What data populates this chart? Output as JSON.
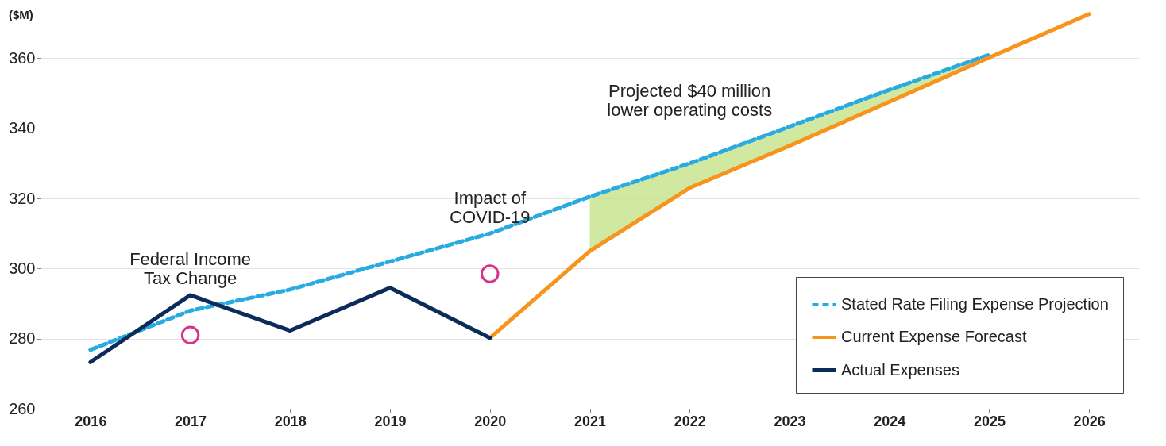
{
  "chart_data": {
    "type": "line",
    "ylabel": "($M)",
    "x": [
      2016,
      2017,
      2018,
      2019,
      2020,
      2021,
      2022,
      2023,
      2024,
      2025
    ],
    "xlim": [
      2015.5,
      2026.5
    ],
    "xticks": [
      2016,
      2017,
      2018,
      2019,
      2020,
      2021,
      2022,
      2023,
      2024,
      2025,
      2026
    ],
    "ylim": [
      260,
      373
    ],
    "yticks": [
      260,
      280,
      300,
      320,
      340,
      360
    ],
    "grid": "y",
    "legend": "bottom right",
    "series": [
      {
        "type": "area",
        "color": "#c6e28a",
        "x": [
          2021,
          2022,
          2023,
          2024,
          2025
        ],
        "values": [
          320.5,
          330,
          340.5,
          351,
          361
        ]
      },
      {
        "name": "Stated Rate Filing Expense Projection",
        "color": "#29abe2",
        "line_style": "dashed",
        "values": [
          276.8,
          288,
          294,
          302,
          310,
          320.5,
          330,
          340.5,
          351,
          361
        ]
      },
      {
        "name": "Current Expense Forecast",
        "color": "#f7941d",
        "line_style": "solid",
        "x": [
          2020,
          2021,
          2022,
          2023,
          2024,
          2025,
          2026
        ],
        "values": [
          280.2,
          305,
          323,
          335,
          347.6,
          360.2,
          372.6
        ]
      },
      {
        "name": "Actual Expenses",
        "color": "#0b2c5a",
        "line_style": "solid",
        "x": [
          2016,
          2017,
          2018,
          2019,
          2020
        ],
        "values": [
          273.3,
          292.4,
          282.3,
          294.5,
          280.2
        ]
      },
      {
        "type": "scatter",
        "color": "#d6338a",
        "marker": "circle",
        "x": [
          2017,
          2020
        ],
        "values": [
          281,
          298.5
        ]
      }
    ],
    "annotations": [
      {
        "text": "Federal Income\nTax Change",
        "x": 2017,
        "y": 281
      },
      {
        "text": "Impact of\nCOVID-19",
        "x": 2020,
        "y": 298.5
      },
      {
        "text": "Projected $40 million\nlower operating costs",
        "x": 2022,
        "y": 329
      }
    ]
  }
}
